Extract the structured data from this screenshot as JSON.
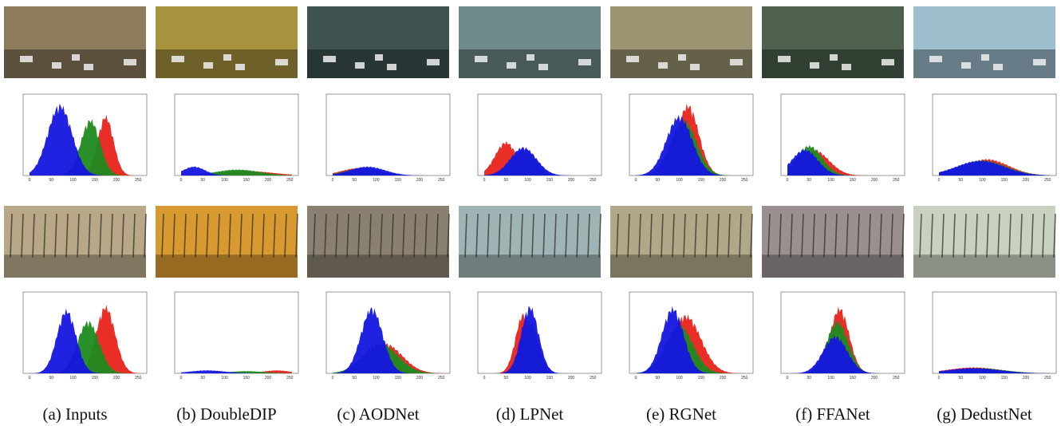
{
  "panels": [
    {
      "caption": "(a) Inputs"
    },
    {
      "caption": "(b) DoubleDIP"
    },
    {
      "caption": "(c) AODNet"
    },
    {
      "caption": "(d) LPNet"
    },
    {
      "caption": "(e) RGNet"
    },
    {
      "caption": "(f) FFANet"
    },
    {
      "caption": "(g) DedustNet"
    }
  ],
  "histogram_xticks": [
    0,
    50,
    100,
    150,
    200,
    250
  ]
}
